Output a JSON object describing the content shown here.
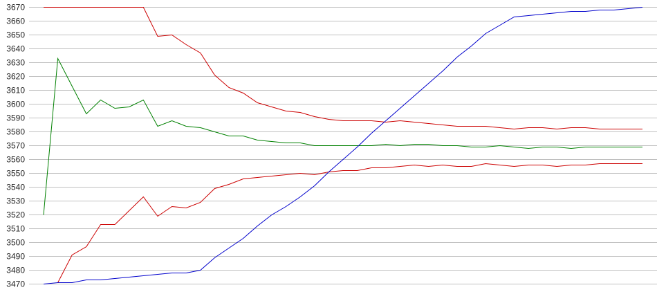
{
  "chart_data": {
    "type": "line",
    "title": "",
    "xlabel": "",
    "ylabel": "",
    "ylim": [
      3470,
      3670
    ],
    "ytick_step": 10,
    "yticks": [
      "3670",
      "3660",
      "3650",
      "3640",
      "3630",
      "3620",
      "3610",
      "3600",
      "3590",
      "3580",
      "3570",
      "3560",
      "3550",
      "3540",
      "3530",
      "3520",
      "3510",
      "3500",
      "3490",
      "3480",
      "3470"
    ],
    "grid": true,
    "legend": "none",
    "x": [
      0,
      1,
      2,
      3,
      4,
      5,
      6,
      7,
      8,
      9,
      10,
      11,
      12,
      13,
      14,
      15,
      16,
      17,
      18,
      19,
      20,
      21,
      22,
      23,
      24,
      25,
      26,
      27,
      28,
      29,
      30,
      31,
      32,
      33,
      34,
      35,
      36,
      37,
      38,
      39,
      40,
      41,
      42
    ],
    "series": [
      {
        "name": "upper-red",
        "color": "#cc0000",
        "values": [
          3670,
          3670,
          3670,
          3670,
          3670,
          3670,
          3670,
          3670,
          3649,
          3650,
          3643,
          3637,
          3621,
          3612,
          3608,
          3601,
          3598,
          3595,
          3594,
          3591,
          3589,
          3588,
          3588,
          3588,
          3587,
          3588,
          3587,
          3586,
          3585,
          3584,
          3584,
          3584,
          3583,
          3582,
          3583,
          3583,
          3582,
          3583,
          3583,
          3582,
          3582,
          3582,
          3582
        ]
      },
      {
        "name": "green",
        "color": "#008000",
        "values": [
          3520,
          3633,
          3613,
          3593,
          3603,
          3597,
          3598,
          3603,
          3584,
          3588,
          3584,
          3583,
          3580,
          3577,
          3577,
          3574,
          3573,
          3572,
          3572,
          3570,
          3570,
          3570,
          3570,
          3570,
          3571,
          3570,
          3571,
          3571,
          3570,
          3570,
          3569,
          3569,
          3570,
          3569,
          3568,
          3569,
          3569,
          3568,
          3569,
          3569,
          3569,
          3569,
          3569
        ]
      },
      {
        "name": "lower-red",
        "color": "#cc0000",
        "values": [
          null,
          3471,
          3491,
          3497,
          3513,
          3513,
          3523,
          3533,
          3519,
          3526,
          3525,
          3529,
          3539,
          3542,
          3546,
          3547,
          3548,
          3549,
          3550,
          3549,
          3551,
          3552,
          3552,
          3554,
          3554,
          3555,
          3556,
          3555,
          3556,
          3555,
          3555,
          3557,
          3556,
          3555,
          3556,
          3556,
          3555,
          3556,
          3556,
          3557,
          3557,
          3557,
          3557
        ]
      },
      {
        "name": "blue",
        "color": "#0000cc",
        "values": [
          3470,
          3471,
          3471,
          3473,
          3473,
          3474,
          3475,
          3476,
          3477,
          3478,
          3478,
          3480,
          3489,
          3496,
          3503,
          3512,
          3520,
          3526,
          3533,
          3541,
          3551,
          3560,
          3569,
          3579,
          3588,
          3597,
          3606,
          3615,
          3624,
          3634,
          3642,
          3651,
          3657,
          3663,
          3664,
          3665,
          3666,
          3667,
          3667,
          3668,
          3668,
          3669,
          3670
        ]
      }
    ],
    "grid_color": "#c0c0c0"
  }
}
